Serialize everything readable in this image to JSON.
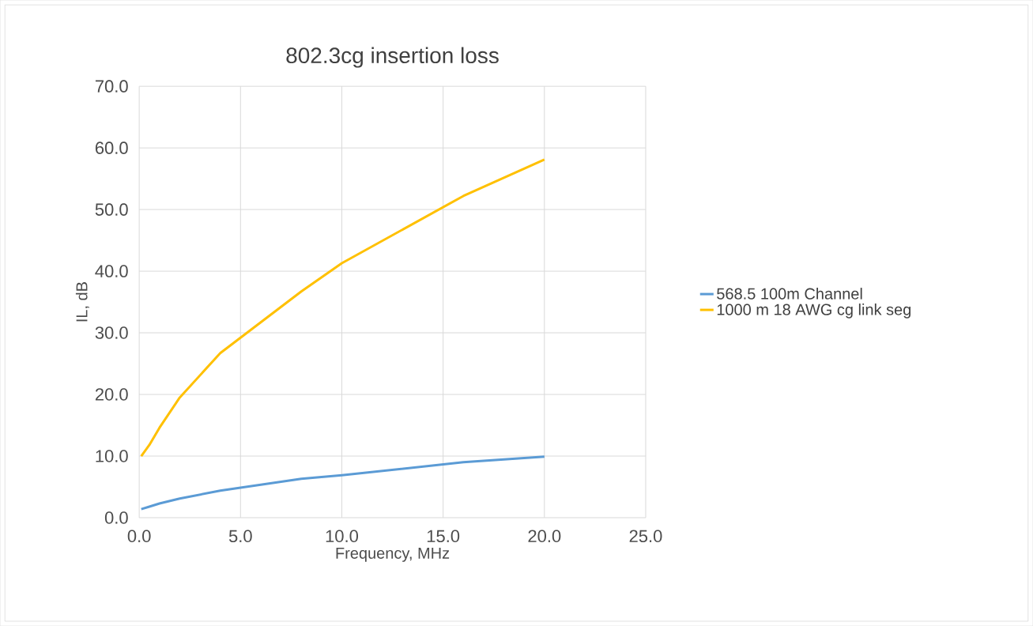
{
  "chart_data": {
    "type": "line",
    "title": "802.3cg insertion loss",
    "xlabel": "Frequency, MHz",
    "ylabel": "IL, dB",
    "xlim": [
      0,
      25
    ],
    "ylim": [
      0,
      70
    ],
    "xticks": [
      {
        "value": 0,
        "label": "0.0"
      },
      {
        "value": 5,
        "label": "5.0"
      },
      {
        "value": 10,
        "label": "10.0"
      },
      {
        "value": 15,
        "label": "15.0"
      },
      {
        "value": 20,
        "label": "20.0"
      },
      {
        "value": 25,
        "label": "25.0"
      }
    ],
    "yticks": [
      {
        "value": 0,
        "label": "0.0"
      },
      {
        "value": 10,
        "label": "10.0"
      },
      {
        "value": 20,
        "label": "20.0"
      },
      {
        "value": 30,
        "label": "30.0"
      },
      {
        "value": 40,
        "label": "40.0"
      },
      {
        "value": 50,
        "label": "50.0"
      },
      {
        "value": 60,
        "label": "60.0"
      },
      {
        "value": 70,
        "label": "70.0"
      }
    ],
    "grid": true,
    "legend": "right",
    "marker": "none",
    "line_style": "solid",
    "x": [
      0.1,
      0.5,
      1,
      2,
      4,
      8,
      10,
      16,
      20
    ],
    "series": [
      {
        "name": "568.5 100m Channel",
        "color": "#5b9bd5",
        "values": [
          1.4,
          1.8,
          2.3,
          3.1,
          4.4,
          6.3,
          6.9,
          9.0,
          9.9
        ]
      },
      {
        "name": "1000 m 18 AWG cg link seg",
        "color": "#ffc000",
        "values": [
          10.0,
          11.8,
          14.6,
          19.5,
          26.7,
          36.7,
          41.3,
          52.2,
          58.1
        ]
      }
    ]
  }
}
